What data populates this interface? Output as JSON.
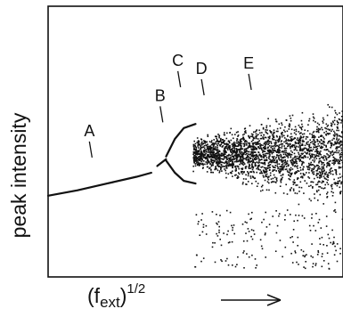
{
  "chart_data": {
    "type": "scatter",
    "title": "",
    "xlabel": "(f",
    "xlabel_sub": "ext",
    "xlabel_sup": "1/2",
    "ylabel": "peak intensity",
    "x_direction_arrow": true,
    "axis_ticks": false,
    "grid": false,
    "legend": "none",
    "xlim": [
      0,
      1
    ],
    "ylim": [
      0,
      1
    ],
    "annotations": [
      {
        "label": "A",
        "x": 0.14,
        "y": 0.52
      },
      {
        "label": "B",
        "x": 0.38,
        "y": 0.65
      },
      {
        "label": "C",
        "x": 0.44,
        "y": 0.78
      },
      {
        "label": "D",
        "x": 0.52,
        "y": 0.75
      },
      {
        "label": "E",
        "x": 0.68,
        "y": 0.77
      }
    ],
    "series": [
      {
        "x": [
          0.0,
          0.1,
          0.2,
          0.3,
          0.35
        ],
        "y": [
          0.3,
          0.32,
          0.345,
          0.37,
          0.385
        ]
      },
      {
        "x": [
          0.37,
          0.4
        ],
        "y": [
          0.41,
          0.435
        ]
      },
      {
        "x": [
          0.4,
          0.43,
          0.46,
          0.5
        ],
        "y": [
          0.445,
          0.51,
          0.55,
          0.565
        ]
      },
      {
        "x": [
          0.4,
          0.43,
          0.46,
          0.5
        ],
        "y": [
          0.43,
          0.385,
          0.355,
          0.345
        ]
      }
    ],
    "scatter_region": {
      "x_start": 0.49,
      "x_end": 1.0,
      "center_y": 0.455,
      "note": "chaotic dots fanning out after period doubling"
    }
  }
}
